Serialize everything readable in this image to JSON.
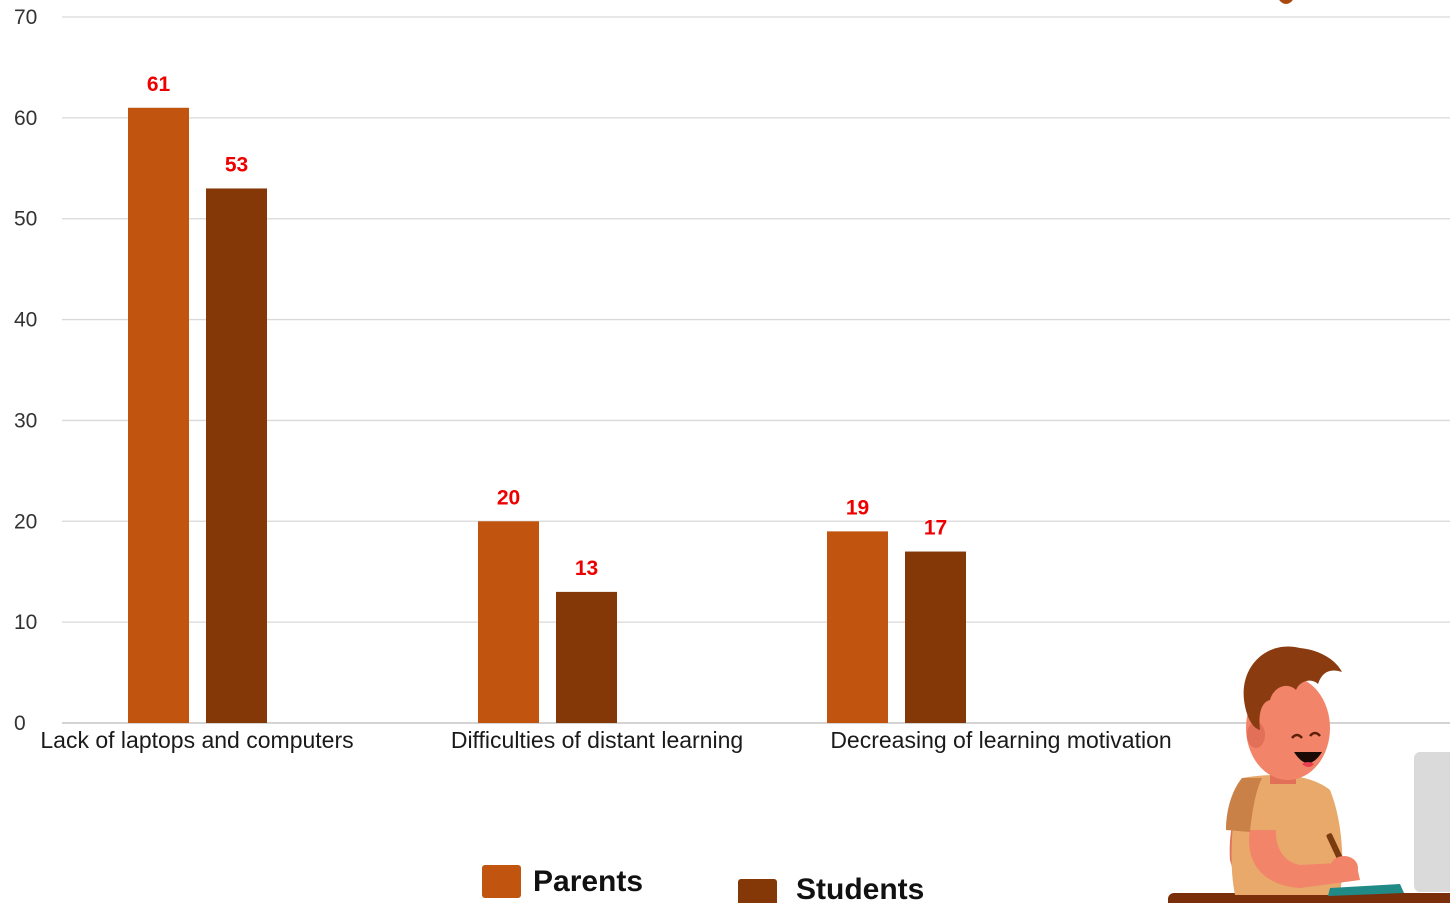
{
  "chart_data": {
    "type": "bar",
    "title": "",
    "xlabel": "",
    "ylabel": "",
    "categories": [
      "Lack of laptops and computers",
      "Difficulties of distant learning",
      "Decreasing of learning motivation"
    ],
    "series": [
      {
        "name": "Parents",
        "values": [
          61,
          20,
          19
        ],
        "color": "#c1540f"
      },
      {
        "name": "Students",
        "values": [
          53,
          13,
          17
        ],
        "color": "#843707"
      }
    ],
    "ylim": [
      0,
      70
    ],
    "yticks": [
      0,
      10,
      20,
      30,
      40,
      50,
      60,
      70
    ],
    "grid": true,
    "legend": "bottom-center",
    "data_label_color": "#ee0000"
  },
  "illustration": {
    "description_icon": "student-with-laptop-illustration",
    "colors": {
      "hair": "#8a3c10",
      "skin": "#f2846a",
      "shirt": "#e8a96a",
      "desk": "#7a2e0a"
    }
  }
}
